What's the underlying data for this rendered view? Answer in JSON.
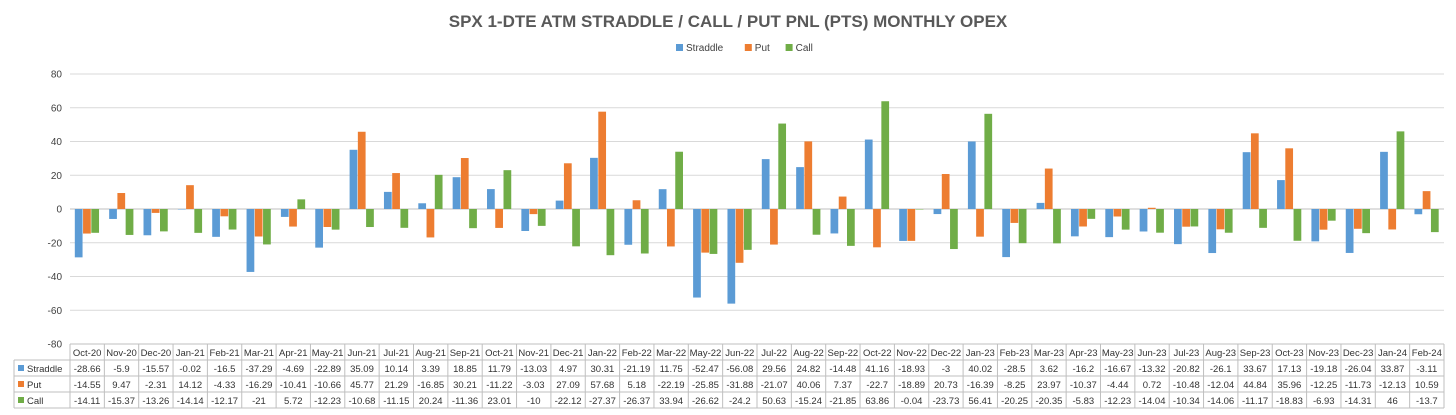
{
  "chart_data": {
    "type": "bar",
    "title": "SPX 1-DTE ATM STRADDLE / CALL / PUT PNL (PTS) MONTHLY OPEX",
    "xlabel": "",
    "ylabel": "",
    "ylim": [
      -80,
      80
    ],
    "yticks": [
      80,
      60,
      40,
      20,
      0,
      -20,
      -40,
      -60,
      -80
    ],
    "grid": true,
    "legend_position": "top",
    "data_table": true,
    "categories": [
      "Oct-20",
      "Nov-20",
      "Dec-20",
      "Jan-21",
      "Feb-21",
      "Mar-21",
      "Apr-21",
      "May-21",
      "Jun-21",
      "Jul-21",
      "Aug-21",
      "Sep-21",
      "Oct-21",
      "Nov-21",
      "Dec-21",
      "Jan-22",
      "Feb-22",
      "Mar-22",
      "May-22",
      "Jun-22",
      "Jul-22",
      "Aug-22",
      "Sep-22",
      "Oct-22",
      "Nov-22",
      "Dec-22",
      "Jan-23",
      "Feb-23",
      "Mar-23",
      "Apr-23",
      "May-23",
      "Jun-23",
      "Jul-23",
      "Aug-23",
      "Sep-23",
      "Oct-23",
      "Nov-23",
      "Dec-23",
      "Jan-24",
      "Feb-24"
    ],
    "series": [
      {
        "name": "Straddle",
        "color": "#5b9bd5",
        "values": [
          -28.66,
          -5.9,
          -15.57,
          -0.02,
          -16.5,
          -37.29,
          -4.69,
          -22.89,
          35.09,
          10.14,
          3.39,
          18.85,
          11.79,
          -13.03,
          4.97,
          30.31,
          -21.19,
          11.75,
          -52.47,
          -56.08,
          29.56,
          24.82,
          -14.48,
          41.16,
          -18.93,
          -3,
          40.02,
          -28.5,
          3.62,
          -16.2,
          -16.67,
          -13.32,
          -20.82,
          -26.1,
          33.67,
          17.13,
          -19.18,
          -26.04,
          33.87,
          -3.11
        ]
      },
      {
        "name": "Put",
        "color": "#ed7d31",
        "values": [
          -14.55,
          9.47,
          -2.31,
          14.12,
          -4.33,
          -16.29,
          -10.41,
          -10.66,
          45.77,
          21.29,
          -16.85,
          30.21,
          -11.22,
          -3.03,
          27.09,
          57.68,
          5.18,
          -22.19,
          -25.85,
          -31.88,
          -21.07,
          40.06,
          7.37,
          -22.7,
          -18.89,
          20.73,
          -16.39,
          -8.25,
          23.97,
          -10.37,
          -4.44,
          0.72,
          -10.48,
          -12.04,
          44.84,
          35.96,
          -12.25,
          -11.73,
          -12.13,
          10.59
        ]
      },
      {
        "name": "Call",
        "color": "#70ad47",
        "values": [
          -14.11,
          -15.37,
          -13.26,
          -14.14,
          -12.17,
          -21,
          5.72,
          -12.23,
          -10.68,
          -11.15,
          20.24,
          -11.36,
          23.01,
          -10,
          -22.12,
          -27.37,
          -26.37,
          33.94,
          -26.62,
          -24.2,
          50.63,
          -15.24,
          -21.85,
          63.86,
          -0.04,
          -23.73,
          56.41,
          -20.25,
          -20.35,
          -5.83,
          -12.23,
          -14.04,
          -10.34,
          -14.06,
          -11.17,
          -18.83,
          -6.93,
          -14.31,
          46,
          -13.7
        ]
      }
    ]
  }
}
